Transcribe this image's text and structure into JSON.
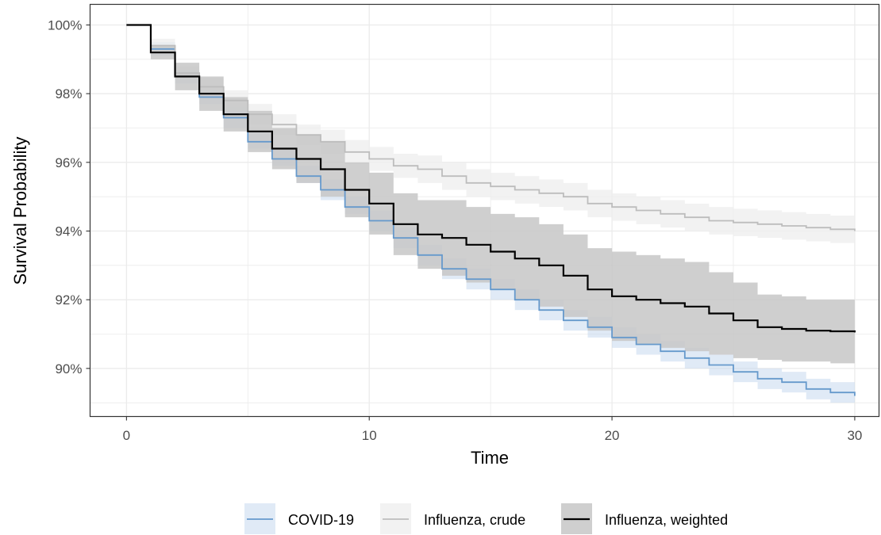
{
  "chart_data": {
    "type": "line",
    "title": "",
    "xlabel": "Time",
    "ylabel": "Survival Probability",
    "xlim": [
      -1.5,
      31
    ],
    "ylim": [
      88.6,
      100.6
    ],
    "x_ticks": [
      0,
      10,
      20,
      30
    ],
    "x_tick_labels": [
      "0",
      "10",
      "20",
      "30"
    ],
    "y_ticks": [
      90,
      92,
      94,
      96,
      98,
      100
    ],
    "y_tick_labels": [
      "90%",
      "92%",
      "94%",
      "96%",
      "98%",
      "100%"
    ],
    "grid": true,
    "legend_position": "bottom",
    "x": [
      0,
      1,
      2,
      3,
      4,
      5,
      6,
      7,
      8,
      9,
      10,
      11,
      12,
      13,
      14,
      15,
      16,
      17,
      18,
      19,
      20,
      21,
      22,
      23,
      24,
      25,
      26,
      27,
      28,
      29,
      30
    ],
    "series": [
      {
        "name": "COVID-19",
        "color": "#6699cc",
        "band_color": "#c6d9ef",
        "values": [
          100.0,
          99.3,
          98.5,
          97.9,
          97.3,
          96.6,
          96.1,
          95.6,
          95.2,
          94.7,
          94.3,
          93.8,
          93.3,
          92.9,
          92.6,
          92.3,
          92.0,
          91.7,
          91.4,
          91.2,
          90.9,
          90.7,
          90.5,
          90.3,
          90.1,
          89.9,
          89.7,
          89.6,
          89.4,
          89.3,
          89.2
        ],
        "lower": [
          100.0,
          99.1,
          98.3,
          97.7,
          97.0,
          96.4,
          95.9,
          95.4,
          94.9,
          94.5,
          94.0,
          93.5,
          93.0,
          92.6,
          92.3,
          92.0,
          91.7,
          91.4,
          91.1,
          90.9,
          90.6,
          90.4,
          90.2,
          90.0,
          89.8,
          89.6,
          89.4,
          89.3,
          89.1,
          89.0,
          88.9
        ],
        "upper": [
          100.0,
          99.5,
          98.7,
          98.1,
          97.6,
          96.9,
          96.4,
          95.9,
          95.5,
          95.0,
          94.6,
          94.1,
          93.6,
          93.2,
          92.9,
          92.6,
          92.3,
          92.0,
          91.7,
          91.5,
          91.2,
          91.0,
          90.8,
          90.6,
          90.4,
          90.2,
          90.0,
          89.9,
          89.7,
          89.6,
          89.5
        ]
      },
      {
        "name": "Influenza, crude",
        "color": "#bdbdbd",
        "band_color": "#ededed",
        "values": [
          100.0,
          99.4,
          98.6,
          98.2,
          97.8,
          97.4,
          97.1,
          96.8,
          96.6,
          96.3,
          96.1,
          95.9,
          95.8,
          95.6,
          95.4,
          95.3,
          95.2,
          95.1,
          95.0,
          94.8,
          94.7,
          94.6,
          94.5,
          94.4,
          94.3,
          94.25,
          94.2,
          94.15,
          94.1,
          94.05,
          94.0
        ],
        "lower": [
          100.0,
          99.2,
          98.4,
          97.95,
          97.5,
          97.1,
          96.8,
          96.5,
          96.25,
          95.95,
          95.75,
          95.55,
          95.4,
          95.2,
          95.0,
          94.9,
          94.8,
          94.7,
          94.6,
          94.4,
          94.3,
          94.2,
          94.1,
          94.0,
          93.9,
          93.85,
          93.8,
          93.75,
          93.7,
          93.65,
          93.6
        ],
        "upper": [
          100.0,
          99.6,
          98.8,
          98.45,
          98.1,
          97.7,
          97.4,
          97.1,
          96.95,
          96.65,
          96.45,
          96.25,
          96.2,
          96.0,
          95.8,
          95.7,
          95.6,
          95.5,
          95.4,
          95.2,
          95.1,
          95.0,
          94.9,
          94.8,
          94.7,
          94.65,
          94.6,
          94.55,
          94.5,
          94.45,
          94.4
        ]
      },
      {
        "name": "Influenza, weighted",
        "color": "#000000",
        "band_color": "#c7c7c7",
        "values": [
          100.0,
          99.2,
          98.5,
          98.0,
          97.4,
          96.9,
          96.4,
          96.1,
          95.8,
          95.2,
          94.8,
          94.2,
          93.9,
          93.8,
          93.6,
          93.4,
          93.2,
          93.0,
          92.7,
          92.3,
          92.1,
          92.0,
          91.9,
          91.8,
          91.6,
          91.4,
          91.2,
          91.15,
          91.1,
          91.08,
          91.05
        ],
        "lower": [
          100.0,
          99.0,
          98.1,
          97.5,
          96.9,
          96.3,
          95.8,
          95.4,
          95.0,
          94.4,
          93.9,
          93.3,
          92.9,
          92.7,
          92.5,
          92.3,
          92.0,
          91.8,
          91.5,
          91.1,
          90.8,
          90.7,
          90.6,
          90.5,
          90.4,
          90.3,
          90.25,
          90.2,
          90.2,
          90.15,
          90.15
        ],
        "upper": [
          100.0,
          99.4,
          98.9,
          98.5,
          97.9,
          97.5,
          97.0,
          96.8,
          96.6,
          96.0,
          95.7,
          95.1,
          94.9,
          94.9,
          94.7,
          94.5,
          94.4,
          94.2,
          93.9,
          93.5,
          93.4,
          93.3,
          93.2,
          93.1,
          92.8,
          92.5,
          92.15,
          92.1,
          92.0,
          92.0,
          91.95
        ]
      }
    ]
  }
}
